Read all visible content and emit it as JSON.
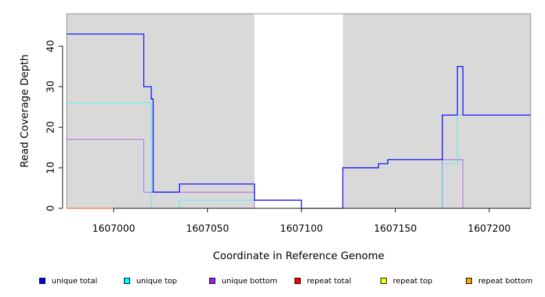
{
  "chart_data": {
    "type": "line",
    "step": true,
    "xlabel": "Coordinate in Reference Genome",
    "ylabel": "Read Coverage Depth",
    "xlim": [
      1606975,
      1607222
    ],
    "ylim": [
      0,
      48
    ],
    "xticks": [
      1607000,
      1607050,
      1607100,
      1607150,
      1607200
    ],
    "yticks": [
      0,
      10,
      20,
      30,
      40
    ],
    "shaded_regions": [
      [
        1606975,
        1607075
      ],
      [
        1607122,
        1607222
      ]
    ],
    "shade_color": "#d9d9d9",
    "series": [
      {
        "name": "unique total",
        "color": "#0000ff",
        "x": [
          1606975,
          1607016,
          1607016,
          1607020,
          1607020,
          1607021,
          1607021,
          1607035,
          1607035,
          1607075,
          1607075,
          1607100,
          1607100,
          1607122,
          1607122,
          1607141,
          1607141,
          1607146,
          1607146,
          1607175,
          1607175,
          1607183,
          1607183,
          1607186,
          1607186,
          1607222
        ],
        "y": [
          43,
          43,
          30,
          30,
          27,
          27,
          4,
          4,
          6,
          6,
          2,
          2,
          0,
          0,
          10,
          10,
          11,
          11,
          12,
          12,
          23,
          23,
          35,
          35,
          23,
          23
        ]
      },
      {
        "name": "unique top",
        "color": "#00ffff",
        "x": [
          1606975,
          1607020,
          1607020,
          1607035,
          1607035,
          1607100,
          1607100,
          1607175,
          1607175,
          1607183,
          1607183,
          1607222
        ],
        "y": [
          26,
          26,
          0,
          0,
          2,
          2,
          0,
          0,
          11,
          11,
          23,
          23
        ]
      },
      {
        "name": "unique bottom",
        "color": "#a020f0",
        "x": [
          1606975,
          1607016,
          1607016,
          1607075,
          1607075,
          1607175,
          1607175,
          1607186,
          1607186,
          1607222
        ],
        "y": [
          17,
          17,
          4,
          4,
          0,
          0,
          12,
          12,
          0,
          0
        ]
      },
      {
        "name": "repeat total",
        "color": "#ff0000",
        "x": [
          1606975,
          1607222
        ],
        "y": [
          0,
          0
        ]
      },
      {
        "name": "repeat top",
        "color": "#ffff00",
        "x": [
          1606975,
          1607222
        ],
        "y": [
          0,
          0
        ]
      },
      {
        "name": "repeat bottom",
        "color": "#ffa500",
        "x": [
          1606975,
          1607222
        ],
        "y": [
          0,
          0
        ]
      }
    ]
  }
}
